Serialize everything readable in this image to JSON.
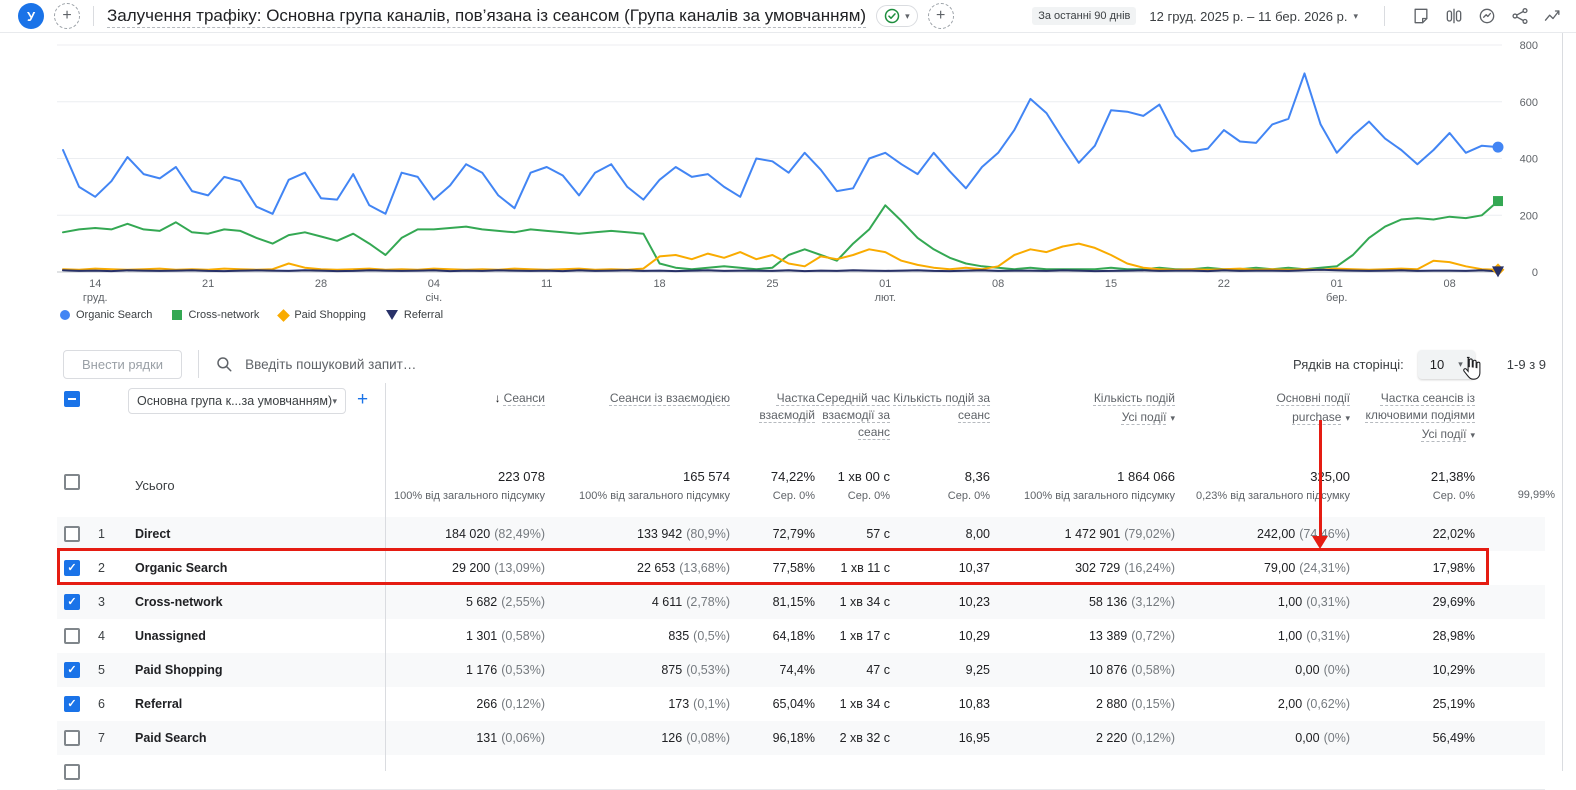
{
  "icons": {
    "plus": "+",
    "caret": "▾",
    "check": "✓",
    "sort_desc": "↓"
  },
  "header": {
    "avatar_letter": "У",
    "title": "Залучення трафіку: Основна група каналів, пов’язана із сеансом (Група каналів за умовчанням)",
    "date_badge": "За останні 90 днів",
    "date_range": "12 груд. 2025 р. – 11 бер. 2026 р."
  },
  "chart_data": {
    "type": "line",
    "title": "",
    "xlabel": "",
    "ylabel": "",
    "ylim": [
      0,
      800
    ],
    "y_ticks": [
      0,
      200,
      400,
      600,
      800
    ],
    "grid": true,
    "legend_position": "bottom-left",
    "x_ticks": [
      {
        "day": 2,
        "label": "14",
        "month": "груд."
      },
      {
        "day": 9,
        "label": "21"
      },
      {
        "day": 16,
        "label": "28"
      },
      {
        "day": 23,
        "label": "04",
        "month": "січ."
      },
      {
        "day": 30,
        "label": "11"
      },
      {
        "day": 37,
        "label": "18"
      },
      {
        "day": 44,
        "label": "25"
      },
      {
        "day": 51,
        "label": "01",
        "month": "лют."
      },
      {
        "day": 58,
        "label": "08"
      },
      {
        "day": 65,
        "label": "15"
      },
      {
        "day": 72,
        "label": "22"
      },
      {
        "day": 79,
        "label": "01",
        "month": "бер."
      },
      {
        "day": 86,
        "label": "08"
      }
    ],
    "series": [
      {
        "name": "Organic Search",
        "color": "#4285f4",
        "marker": "circle",
        "values": [
          430,
          300,
          265,
          320,
          405,
          345,
          330,
          370,
          285,
          270,
          335,
          320,
          230,
          205,
          325,
          350,
          260,
          255,
          345,
          235,
          205,
          350,
          335,
          255,
          305,
          380,
          350,
          270,
          225,
          350,
          370,
          340,
          270,
          350,
          380,
          300,
          255,
          325,
          370,
          335,
          345,
          300,
          265,
          400,
          390,
          350,
          420,
          360,
          285,
          295,
          400,
          420,
          380,
          345,
          420,
          355,
          295,
          370,
          420,
          500,
          610,
          560,
          470,
          385,
          445,
          570,
          565,
          550,
          590,
          480,
          425,
          435,
          500,
          460,
          455,
          520,
          540,
          700,
          520,
          420,
          480,
          530,
          470,
          430,
          380,
          430,
          490,
          420,
          445,
          440
        ]
      },
      {
        "name": "Cross-network",
        "color": "#34a853",
        "marker": "square",
        "values": [
          140,
          150,
          155,
          150,
          170,
          150,
          145,
          175,
          140,
          135,
          150,
          145,
          120,
          100,
          130,
          140,
          125,
          110,
          135,
          100,
          60,
          120,
          150,
          150,
          155,
          160,
          150,
          145,
          140,
          150,
          145,
          140,
          135,
          140,
          145,
          140,
          135,
          30,
          15,
          10,
          15,
          20,
          15,
          10,
          15,
          60,
          80,
          60,
          40,
          100,
          150,
          235,
          180,
          120,
          80,
          50,
          30,
          20,
          15,
          10,
          15,
          10,
          10,
          10,
          10,
          15,
          10,
          10,
          15,
          10,
          10,
          15,
          10,
          10,
          15,
          10,
          15,
          10,
          15,
          20,
          60,
          120,
          160,
          185,
          190,
          185,
          195,
          190,
          200,
          250
        ]
      },
      {
        "name": "Paid Shopping",
        "color": "#f9ab00",
        "marker": "diamond",
        "values": [
          10,
          8,
          12,
          10,
          8,
          10,
          12,
          8,
          10,
          8,
          12,
          10,
          8,
          10,
          30,
          15,
          10,
          8,
          10,
          12,
          8,
          10,
          8,
          12,
          10,
          8,
          10,
          8,
          12,
          10,
          8,
          10,
          12,
          8,
          10,
          8,
          12,
          55,
          60,
          45,
          65,
          50,
          70,
          45,
          60,
          30,
          20,
          55,
          45,
          60,
          80,
          70,
          40,
          25,
          15,
          10,
          15,
          10,
          20,
          60,
          80,
          70,
          90,
          100,
          85,
          60,
          30,
          15,
          10,
          8,
          10,
          8,
          10,
          12,
          8,
          10,
          8,
          10,
          8,
          12,
          10,
          8,
          10,
          12,
          10,
          40,
          35,
          20,
          10,
          8
        ]
      },
      {
        "name": "Referral",
        "color": "#283168",
        "marker": "triangle-down",
        "values": [
          6,
          4,
          5,
          3,
          6,
          5,
          4,
          5,
          6,
          4,
          3,
          5,
          6,
          5,
          4,
          6,
          5,
          3,
          4,
          6,
          5,
          4,
          5,
          6,
          3,
          5,
          4,
          6,
          5,
          4,
          5,
          3,
          6,
          4,
          5,
          6,
          4,
          5,
          3,
          5,
          6,
          4,
          5,
          5,
          4,
          6,
          3,
          5,
          4,
          6,
          5,
          4,
          5,
          6,
          4,
          3,
          5,
          6,
          4,
          5,
          5,
          4,
          6,
          5,
          3,
          4,
          5,
          6,
          4,
          5,
          5,
          3,
          6,
          4,
          5,
          5,
          4,
          6,
          8,
          6,
          5,
          4,
          5,
          6,
          4,
          5,
          5,
          4,
          6,
          2
        ]
      }
    ]
  },
  "toolbar": {
    "select_rows_label": "Внести рядки",
    "search_placeholder": "Введіть пошуковий запит…",
    "rows_per_page_label": "Рядків на сторінці:",
    "rows_per_page_value": "10",
    "pagination_range": "1-9 з 9"
  },
  "table": {
    "dimension_label": "Основна група к...за умовчанням)",
    "columns": [
      {
        "title": "Сеанси",
        "sorted": true
      },
      {
        "title": "Сеанси із взаємодією"
      },
      {
        "title": "Частка взаємодій"
      },
      {
        "title": "Середній час взаємодії за сеанс"
      },
      {
        "title": "Кількість подій за сеанс"
      },
      {
        "title": "Кількість подій",
        "sub": "Усі події"
      },
      {
        "title": "Основні події",
        "sub": "purchase"
      },
      {
        "title": "Частка сеансів із ключовими подіями",
        "sub": "Усі події"
      }
    ],
    "totals": {
      "label": "Усього",
      "values": [
        "223 078",
        "165 574",
        "74,22%",
        "1 хв 00 с",
        "8,36",
        "1 864 066",
        "325,00",
        "21,38%"
      ],
      "subvalues": [
        "100% від загального підсумку",
        "100% від загального підсумку",
        "Сер. 0%",
        "Сер. 0%",
        "Сер. 0%",
        "100% від загального підсумку",
        "0,23% від загального підсумку",
        "Сер. 0%"
      ],
      "overflow_value": "99,99%"
    },
    "rows": [
      {
        "num": "1",
        "channel": "Direct",
        "checked": false,
        "values": [
          "184 020",
          "133 942",
          "72,79%",
          "57 с",
          "8,00",
          "1 472 901",
          "242,00",
          "22,02%"
        ],
        "pcts": [
          "(82,49%)",
          "(80,9%)",
          "",
          "",
          "",
          "(79,02%)",
          "(74,46%)",
          ""
        ]
      },
      {
        "num": "2",
        "channel": "Organic Search",
        "checked": true,
        "values": [
          "29 200",
          "22 653",
          "77,58%",
          "1 хв 11 с",
          "10,37",
          "302 729",
          "79,00",
          "17,98%"
        ],
        "pcts": [
          "(13,09%)",
          "(13,68%)",
          "",
          "",
          "",
          "(16,24%)",
          "(24,31%)",
          ""
        ]
      },
      {
        "num": "3",
        "channel": "Cross-network",
        "checked": true,
        "values": [
          "5 682",
          "4 611",
          "81,15%",
          "1 хв 34 с",
          "10,23",
          "58 136",
          "1,00",
          "29,69%"
        ],
        "pcts": [
          "(2,55%)",
          "(2,78%)",
          "",
          "",
          "",
          "(3,12%)",
          "(0,31%)",
          ""
        ]
      },
      {
        "num": "4",
        "channel": "Unassigned",
        "checked": false,
        "values": [
          "1 301",
          "835",
          "64,18%",
          "1 хв 17 с",
          "10,29",
          "13 389",
          "1,00",
          "28,98%"
        ],
        "pcts": [
          "(0,58%)",
          "(0,5%)",
          "",
          "",
          "",
          "(0,72%)",
          "(0,31%)",
          ""
        ]
      },
      {
        "num": "5",
        "channel": "Paid Shopping",
        "checked": true,
        "values": [
          "1 176",
          "875",
          "74,4%",
          "47 с",
          "9,25",
          "10 876",
          "0,00",
          "10,29%"
        ],
        "pcts": [
          "(0,53%)",
          "(0,53%)",
          "",
          "",
          "",
          "(0,58%)",
          "(0%)",
          ""
        ]
      },
      {
        "num": "6",
        "channel": "Referral",
        "checked": true,
        "values": [
          "266",
          "173",
          "65,04%",
          "1 хв 34 с",
          "10,83",
          "2 880",
          "2,00",
          "25,19%"
        ],
        "pcts": [
          "(0,12%)",
          "(0,1%)",
          "",
          "",
          "",
          "(0,15%)",
          "(0,62%)",
          ""
        ]
      },
      {
        "num": "7",
        "channel": "Paid Search",
        "checked": false,
        "values": [
          "131",
          "126",
          "96,18%",
          "2 хв 32 с",
          "16,95",
          "2 220",
          "0,00",
          "56,49%"
        ],
        "pcts": [
          "(0,06%)",
          "(0,08%)",
          "",
          "",
          "",
          "(0,12%)",
          "(0%)",
          ""
        ]
      }
    ]
  },
  "annotations": {
    "highlight_color": "#e51c12",
    "highlighted_row": "2"
  }
}
